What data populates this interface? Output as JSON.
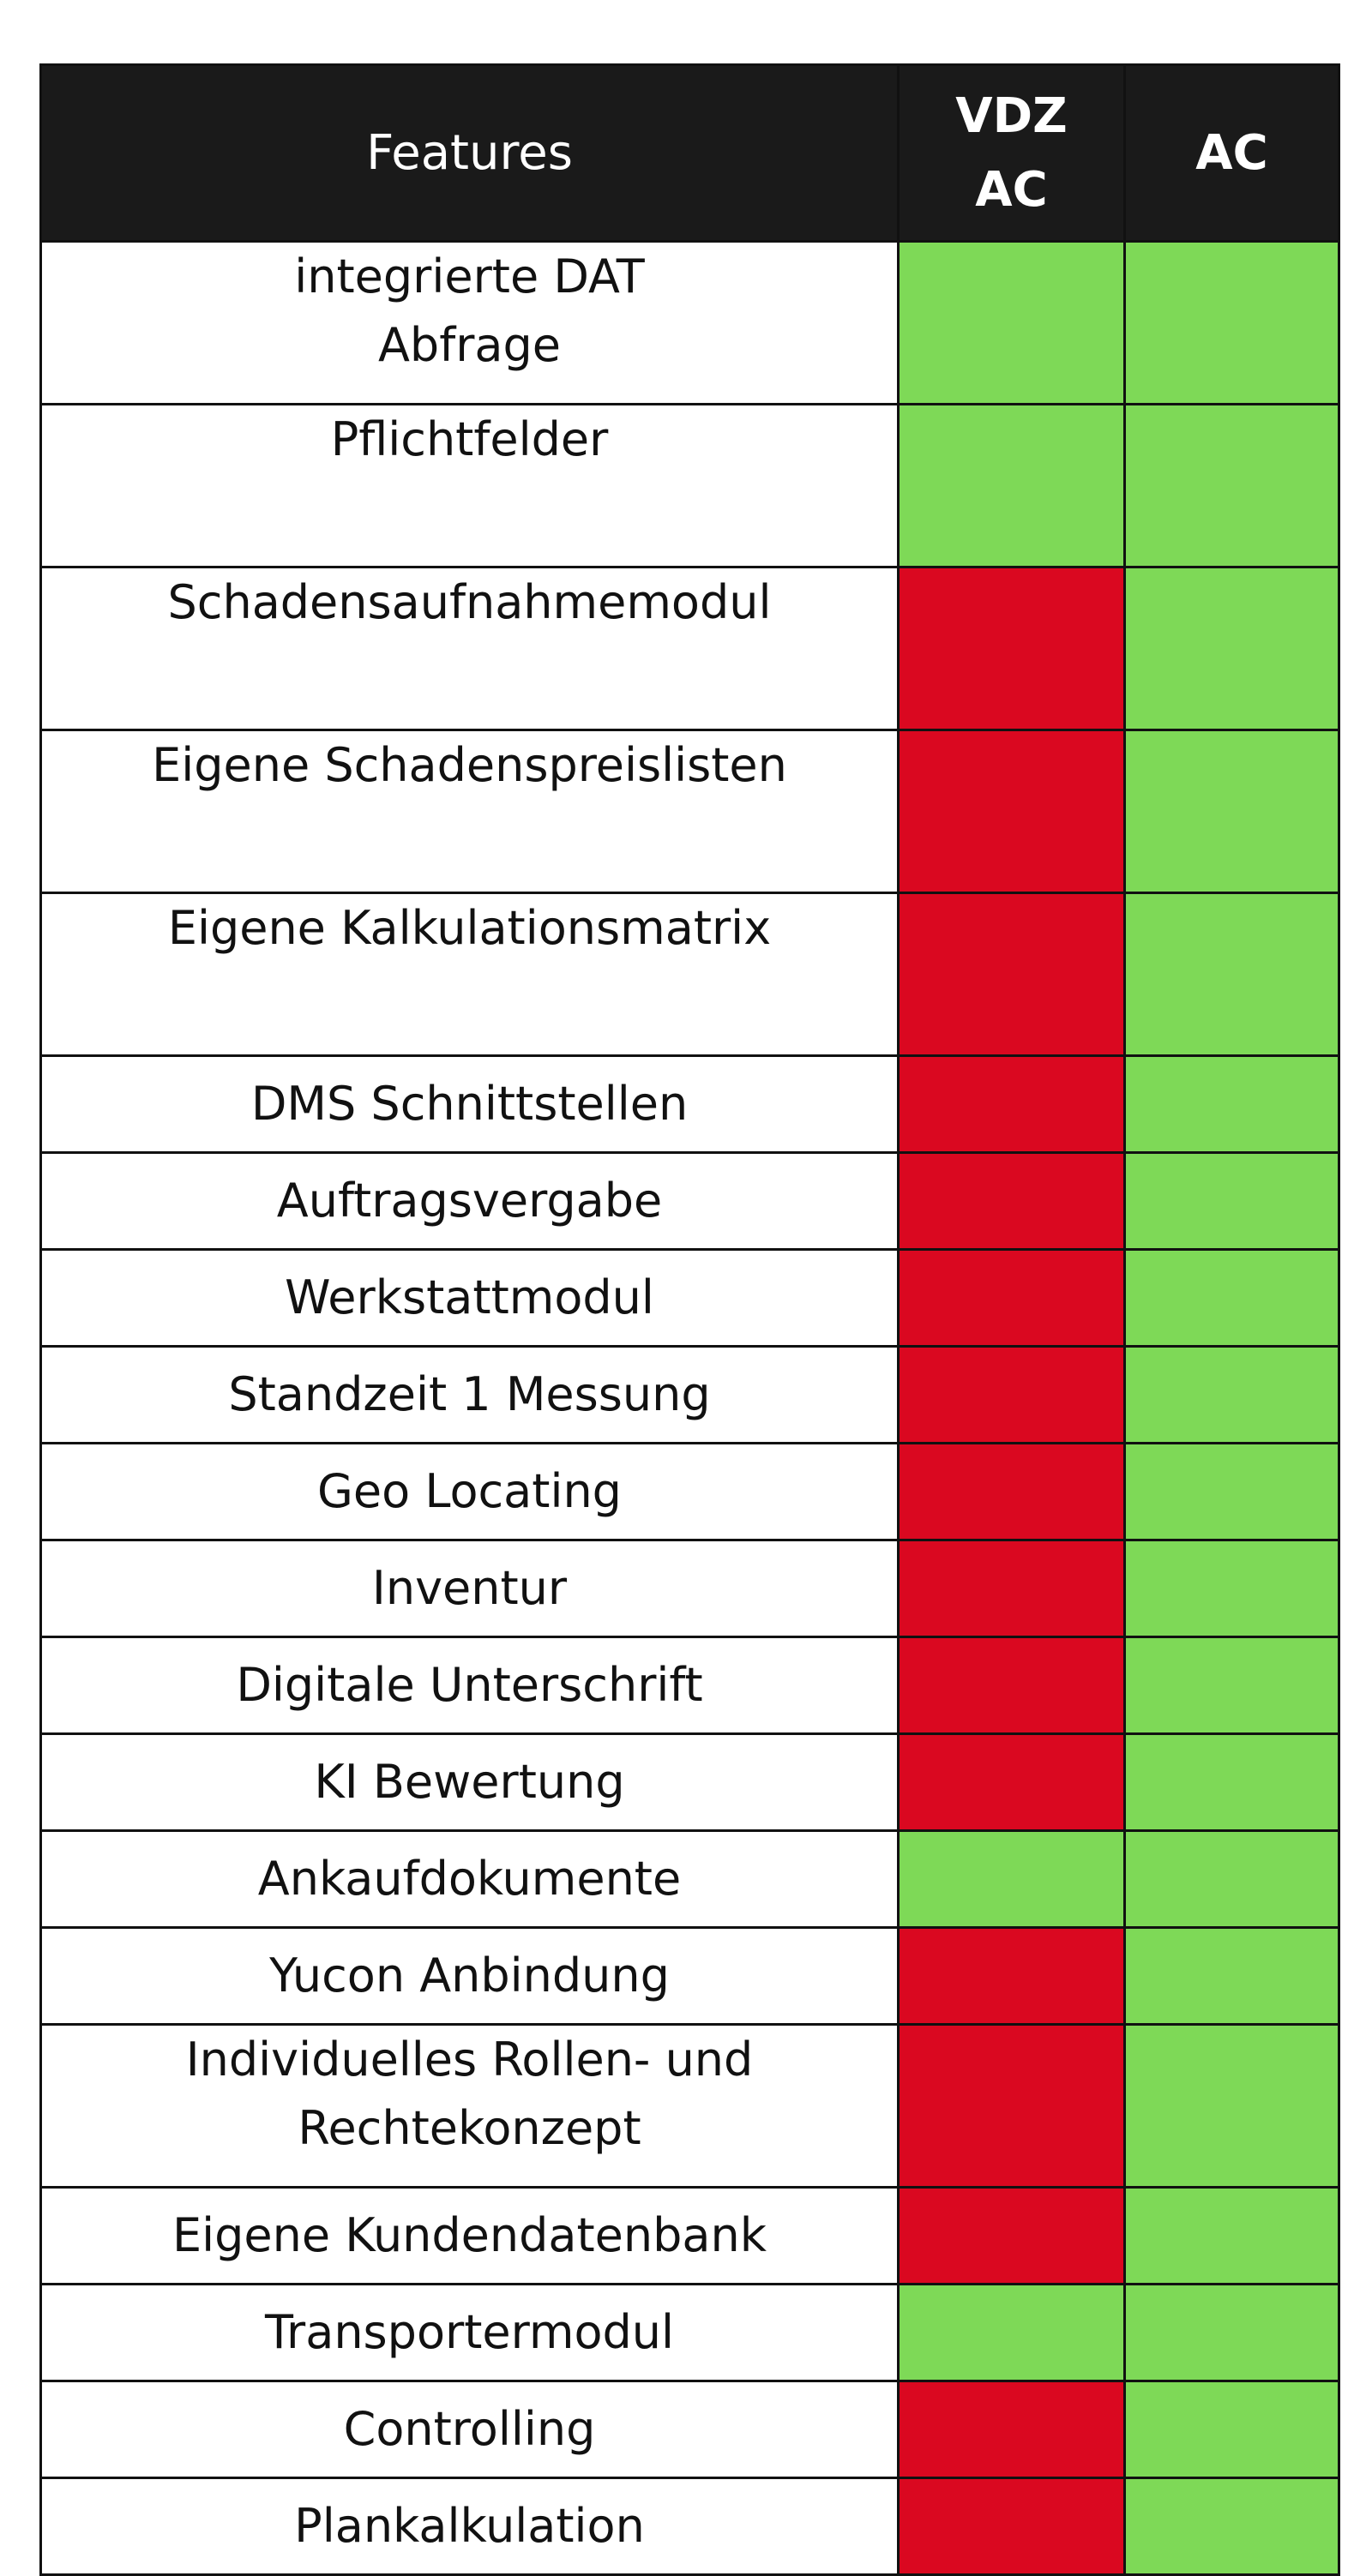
{
  "table": {
    "headers": {
      "features": "Features",
      "vdz_ac": "VDZ\nAC",
      "ac": "AC"
    },
    "colors": {
      "available": "#7ed957",
      "unavailable": "#da0820",
      "header_bg": "#1a1a1a"
    },
    "rows": [
      {
        "feature": "integrierte DAT\nAbfrage",
        "vdz_ac": true,
        "ac": true
      },
      {
        "feature": "Pflichtfelder",
        "vdz_ac": true,
        "ac": true
      },
      {
        "feature": "Schadensaufnahmemodul",
        "vdz_ac": false,
        "ac": true
      },
      {
        "feature": "Eigene Schadenspreislisten",
        "vdz_ac": false,
        "ac": true
      },
      {
        "feature": "Eigene Kalkulationsmatrix",
        "vdz_ac": false,
        "ac": true
      },
      {
        "feature": "DMS Schnittstellen",
        "vdz_ac": false,
        "ac": true
      },
      {
        "feature": "Auftragsvergabe",
        "vdz_ac": false,
        "ac": true
      },
      {
        "feature": "Werkstattmodul",
        "vdz_ac": false,
        "ac": true
      },
      {
        "feature": "Standzeit 1 Messung",
        "vdz_ac": false,
        "ac": true
      },
      {
        "feature": "Geo Locating",
        "vdz_ac": false,
        "ac": true
      },
      {
        "feature": "Inventur",
        "vdz_ac": false,
        "ac": true
      },
      {
        "feature": "Digitale Unterschrift",
        "vdz_ac": false,
        "ac": true
      },
      {
        "feature": "KI Bewertung",
        "vdz_ac": false,
        "ac": true
      },
      {
        "feature": "Ankaufdokumente",
        "vdz_ac": true,
        "ac": true
      },
      {
        "feature": "Yucon Anbindung",
        "vdz_ac": false,
        "ac": true
      },
      {
        "feature": "Individuelles Rollen- und\nRechtekonzept",
        "vdz_ac": false,
        "ac": true
      },
      {
        "feature": "Eigene Kundendatenbank",
        "vdz_ac": false,
        "ac": true
      },
      {
        "feature": "Transportermodul",
        "vdz_ac": true,
        "ac": true
      },
      {
        "feature": "Controlling",
        "vdz_ac": false,
        "ac": true
      },
      {
        "feature": "Plankalkulation",
        "vdz_ac": false,
        "ac": true
      }
    ]
  }
}
